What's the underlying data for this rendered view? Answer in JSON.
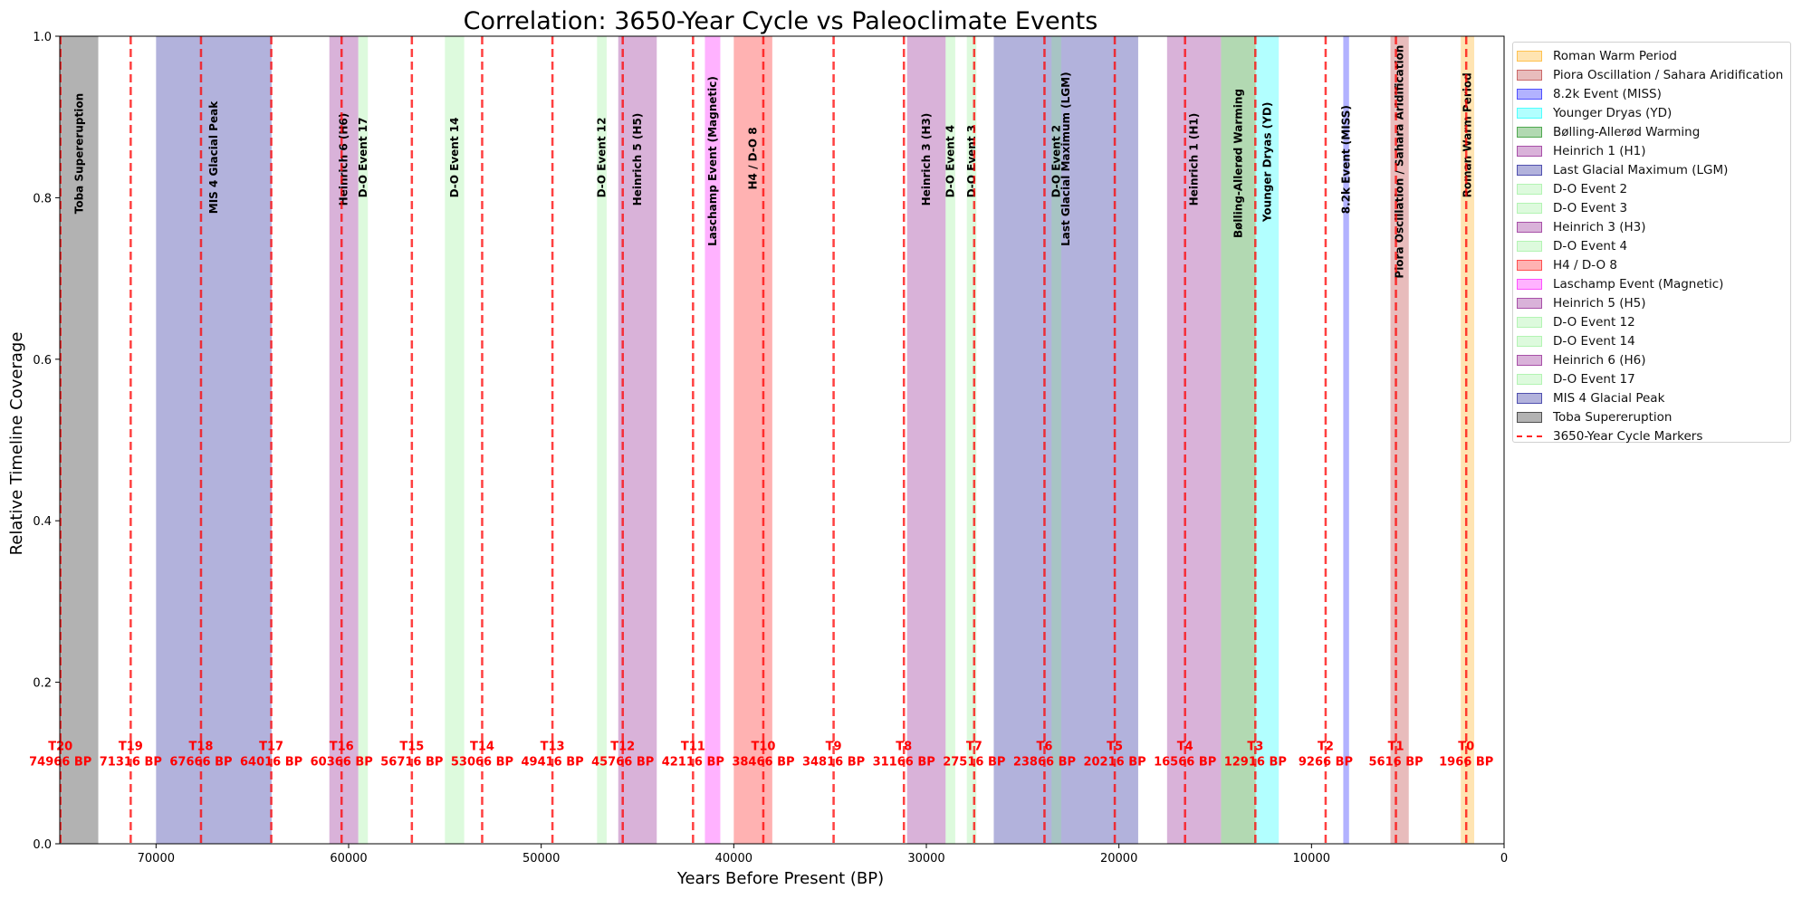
{
  "chart_data": {
    "type": "timeline",
    "title": "Correlation: 3650-Year Cycle vs Paleoclimate Events",
    "xlabel": "Years Before Present (BP)",
    "ylabel": "Relative Timeline Coverage",
    "xlim": [
      75000,
      0
    ],
    "ylim": [
      0,
      1
    ],
    "x_inverted": true,
    "xticks": [
      70000,
      60000,
      50000,
      40000,
      30000,
      20000,
      10000,
      0
    ],
    "yticks": [
      0.0,
      0.2,
      0.4,
      0.6,
      0.8,
      1.0
    ],
    "ytick_labels": [
      "0.0",
      "0.2",
      "0.4",
      "0.6",
      "0.8",
      "1.0"
    ],
    "legend_position": "outside right, top",
    "events": [
      {
        "name": "Roman Warm Period",
        "start": 2250,
        "end": 1550,
        "color": "#ffa500",
        "alpha": 0.3,
        "label_y": 0.8
      },
      {
        "name": "Piora Oscillation / Sahara Aridification",
        "start": 5900,
        "end": 4950,
        "color": "#b22222",
        "alpha": 0.3,
        "label_y": 0.7
      },
      {
        "name": "8.2k Event (MISS)",
        "start": 8350,
        "end": 8050,
        "color": "#0000ff",
        "alpha": 0.3,
        "label_y": 0.78
      },
      {
        "name": "Younger Dryas (YD)",
        "start": 12900,
        "end": 11700,
        "color": "#00ffff",
        "alpha": 0.3,
        "label_y": 0.77
      },
      {
        "name": "Bølling-Allerød Warming",
        "start": 14700,
        "end": 12900,
        "color": "#008000",
        "alpha": 0.3,
        "label_y": 0.75
      },
      {
        "name": "Heinrich 1 (H1)",
        "start": 17500,
        "end": 14700,
        "color": "#800080",
        "alpha": 0.3,
        "label_y": 0.79
      },
      {
        "name": "Last Glacial Maximum (LGM)",
        "start": 26500,
        "end": 19000,
        "color": "#00008b",
        "alpha": 0.3,
        "label_y": 0.74
      },
      {
        "name": "D-O Event 2",
        "start": 23500,
        "end": 23000,
        "color": "#90ee90",
        "alpha": 0.3,
        "label_y": 0.8
      },
      {
        "name": "D-O Event 3",
        "start": 27900,
        "end": 27400,
        "color": "#90ee90",
        "alpha": 0.3,
        "label_y": 0.8
      },
      {
        "name": "Heinrich 3 (H3)",
        "start": 31000,
        "end": 29000,
        "color": "#800080",
        "alpha": 0.3,
        "label_y": 0.79
      },
      {
        "name": "D-O Event 4",
        "start": 29000,
        "end": 28500,
        "color": "#90ee90",
        "alpha": 0.3,
        "label_y": 0.8
      },
      {
        "name": "H4 / D-O 8",
        "start": 40000,
        "end": 38000,
        "color": "#ff0000",
        "alpha": 0.3,
        "label_y": 0.81
      },
      {
        "name": "Laschamp Event (Magnetic)",
        "start": 41500,
        "end": 40700,
        "color": "#ff00ff",
        "alpha": 0.3,
        "label_y": 0.74
      },
      {
        "name": "Heinrich 5 (H5)",
        "start": 46000,
        "end": 44000,
        "color": "#800080",
        "alpha": 0.3,
        "label_y": 0.79
      },
      {
        "name": "D-O Event 12",
        "start": 47100,
        "end": 46600,
        "color": "#90ee90",
        "alpha": 0.3,
        "label_y": 0.8
      },
      {
        "name": "D-O Event 14",
        "start": 55000,
        "end": 54000,
        "color": "#90ee90",
        "alpha": 0.3,
        "label_y": 0.8
      },
      {
        "name": "Heinrich 6 (H6)",
        "start": 61000,
        "end": 59500,
        "color": "#800080",
        "alpha": 0.3,
        "label_y": 0.79
      },
      {
        "name": "D-O Event 17",
        "start": 59500,
        "end": 59000,
        "color": "#90ee90",
        "alpha": 0.3,
        "label_y": 0.8
      },
      {
        "name": "MIS 4 Glacial Peak",
        "start": 70000,
        "end": 64000,
        "color": "#00008b",
        "alpha": 0.3,
        "label_y": 0.78
      },
      {
        "name": "Toba Supereruption",
        "start": 75000,
        "end": 73000,
        "color": "#000000",
        "alpha": 0.3,
        "label_y": 0.78
      }
    ],
    "cycle_markers": {
      "name": "3650-Year Cycle Markers",
      "color": "#ff0000",
      "label_y": 0.115,
      "markers": [
        {
          "id": "T0",
          "year": 1966,
          "label": "1966 BP"
        },
        {
          "id": "T1",
          "year": 5616,
          "label": "5616 BP"
        },
        {
          "id": "T2",
          "year": 9266,
          "label": "9266 BP"
        },
        {
          "id": "T3",
          "year": 12916,
          "label": "12916 BP"
        },
        {
          "id": "T4",
          "year": 16566,
          "label": "16566 BP"
        },
        {
          "id": "T5",
          "year": 20216,
          "label": "20216 BP"
        },
        {
          "id": "T6",
          "year": 23866,
          "label": "23866 BP"
        },
        {
          "id": "T7",
          "year": 27516,
          "label": "27516 BP"
        },
        {
          "id": "T8",
          "year": 31166,
          "label": "31166 BP"
        },
        {
          "id": "T9",
          "year": 34816,
          "label": "34816 BP"
        },
        {
          "id": "T10",
          "year": 38466,
          "label": "38466 BP"
        },
        {
          "id": "T11",
          "year": 42116,
          "label": "42116 BP"
        },
        {
          "id": "T12",
          "year": 45766,
          "label": "45766 BP"
        },
        {
          "id": "T13",
          "year": 49416,
          "label": "49416 BP"
        },
        {
          "id": "T14",
          "year": 53066,
          "label": "53066 BP"
        },
        {
          "id": "T15",
          "year": 56716,
          "label": "56716 BP"
        },
        {
          "id": "T16",
          "year": 60366,
          "label": "60366 BP"
        },
        {
          "id": "T17",
          "year": 64016,
          "label": "64016 BP"
        },
        {
          "id": "T18",
          "year": 67666,
          "label": "67666 BP"
        },
        {
          "id": "T19",
          "year": 71316,
          "label": "71316 BP"
        },
        {
          "id": "T20",
          "year": 74966,
          "label": "74966 BP"
        }
      ]
    }
  }
}
